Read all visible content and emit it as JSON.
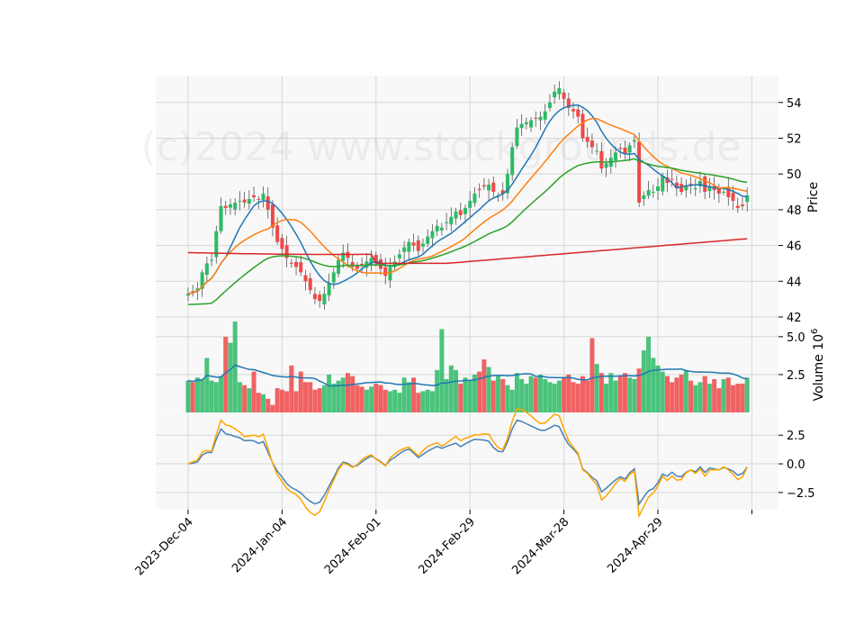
{
  "chart_data": {
    "type": "candlestick",
    "watermark": "(c)2024 www.stockgrounds.de",
    "x_tick_labels": [
      "2023-Dec-04",
      "2024-Jan-04",
      "2024-Feb-01",
      "2024-Feb-29",
      "2024-Mar-28",
      "2024-Apr-29"
    ],
    "x_tick_index": [
      0,
      20,
      40,
      60,
      80,
      100
    ],
    "x_total_bars": 120,
    "price_panel": {
      "ylabel": "Price",
      "ylim": [
        42,
        55.5
      ],
      "yticks": [
        42,
        44,
        46,
        48,
        50,
        52,
        54
      ],
      "close_prices": [
        43.3,
        43.4,
        43.6,
        44.5,
        45.0,
        45.2,
        46.8,
        48.2,
        48.1,
        48.3,
        48.4,
        48.5,
        48.4,
        48.6,
        48.7,
        48.6,
        48.9,
        48.0,
        47.0,
        46.2,
        45.8,
        45.3,
        45.0,
        44.8,
        44.5,
        44.0,
        43.5,
        43.0,
        42.9,
        43.3,
        43.9,
        44.5,
        45.2,
        45.6,
        45.3,
        44.8,
        44.7,
        44.9,
        45.1,
        45.3,
        45.0,
        44.7,
        44.3,
        44.8,
        45.1,
        45.5,
        45.9,
        46.2,
        46.0,
        45.7,
        46.1,
        46.5,
        46.8,
        47.1,
        47.0,
        47.3,
        47.6,
        47.9,
        47.7,
        48.1,
        48.5,
        48.9,
        49.1,
        49.3,
        49.4,
        49.0,
        48.8,
        48.9,
        50.0,
        51.5,
        52.6,
        52.8,
        52.9,
        53.0,
        53.1,
        53.2,
        53.5,
        54.0,
        54.6,
        54.8,
        54.2,
        53.7,
        53.5,
        53.2,
        52.0,
        51.8,
        51.5,
        51.3,
        50.3,
        50.6,
        50.9,
        51.2,
        51.4,
        51.1,
        51.6,
        51.9,
        48.4,
        48.8,
        49.1,
        49.0,
        49.3,
        49.9,
        49.5,
        49.7,
        49.2,
        49.0,
        49.3,
        49.4,
        49.2,
        49.6,
        49.0,
        49.3,
        49.1,
        48.9,
        49.0,
        48.7,
        48.5,
        48.1,
        48.2,
        48.8
      ]
    },
    "volume_panel": {
      "ylabel": "Volume  10^6",
      "ylim": [
        0,
        6.3
      ],
      "yticks": [
        2.5,
        5.0
      ],
      "values": [
        2.1,
        2.0,
        2.3,
        2.2,
        3.6,
        2.1,
        2.0,
        2.4,
        5.0,
        4.6,
        6.0,
        2.0,
        1.8,
        1.6,
        2.7,
        1.3,
        1.2,
        0.9,
        0.5,
        1.6,
        1.5,
        1.4,
        3.1,
        1.4,
        2.7,
        2.0,
        2.0,
        1.5,
        1.6,
        1.8,
        2.5,
        1.9,
        2.1,
        2.3,
        2.6,
        2.4,
        1.8,
        1.7,
        1.5,
        1.7,
        1.9,
        1.8,
        1.5,
        1.4,
        1.5,
        1.3,
        2.3,
        2.0,
        2.3,
        1.3,
        1.4,
        1.5,
        1.4,
        2.8,
        5.5,
        2.2,
        3.1,
        2.8,
        1.9,
        2.3,
        2.1,
        2.5,
        2.7,
        3.5,
        3.0,
        2.1,
        2.4,
        2.2,
        1.8,
        1.5,
        2.6,
        2.2,
        1.9,
        2.4,
        2.3,
        2.5,
        2.2,
        2.0,
        1.9,
        2.1,
        2.3,
        2.5,
        2.0,
        1.9,
        2.4,
        2.1,
        4.9,
        3.2,
        2.6,
        1.9,
        2.6,
        2.1,
        2.4,
        2.6,
        2.3,
        2.2,
        2.9,
        4.1,
        5.0,
        3.6,
        3.1,
        2.7,
        2.4,
        2.0,
        2.3,
        2.5,
        2.8,
        2.1,
        1.8,
        2.0,
        2.4,
        1.9,
        2.2,
        1.6,
        2.2,
        2.3,
        1.8,
        1.9,
        1.9,
        2.3
      ]
    },
    "oscillator_panel": {
      "yticks": [
        -2.5,
        0.0,
        2.5
      ],
      "ylim": [
        -4.0,
        4.4
      ]
    },
    "colors": {
      "up": "#2dba66",
      "down": "#f04848",
      "ma_short": "#1f77b4",
      "ma_mid": "#ff7f0e",
      "ma_long": "#2ca02c",
      "ma_very_long": "#d62728",
      "osc_a": "#4682b4",
      "osc_b": "#ffa500",
      "panel_bg": "#f8f8f8",
      "grid": "#d6d6d6"
    }
  }
}
